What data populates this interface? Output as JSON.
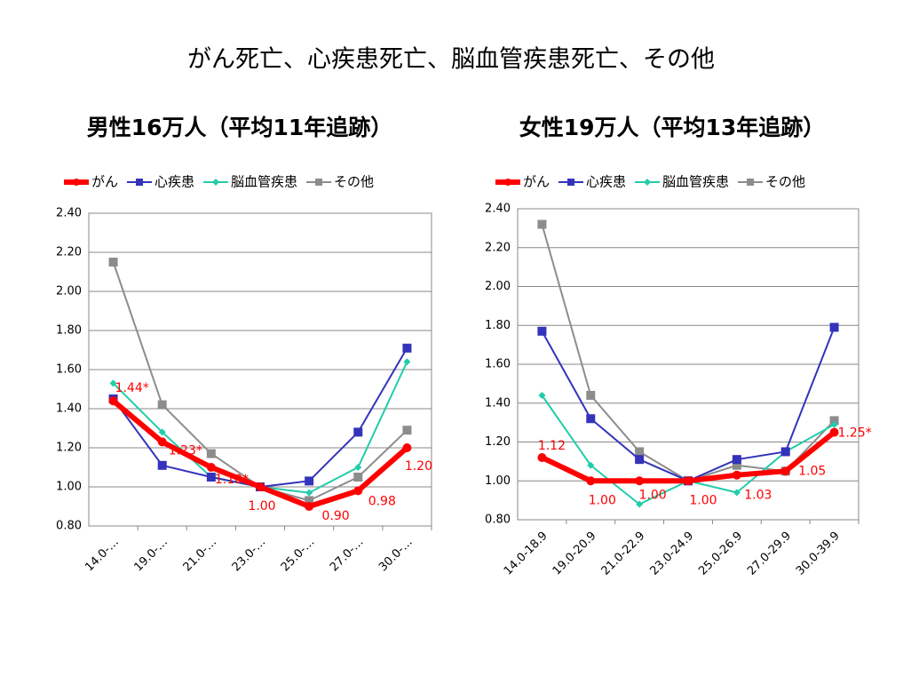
{
  "title": "がん死亡、心疾患死亡、脳血管疾患死亡、その他",
  "chart_data": [
    {
      "type": "line",
      "title": "男性16万人（平均11年追跡）",
      "categories": [
        "14.0-…",
        "19.0-…",
        "21.0-…",
        "23.0-…",
        "25.0-…",
        "27.0-…",
        "30.0-…"
      ],
      "ylim": [
        0.8,
        2.4
      ],
      "yticks": [
        {
          "value": 0.8,
          "label": "0.80"
        },
        {
          "value": 1.0,
          "label": "1.00"
        },
        {
          "value": 1.2,
          "label": "1.20"
        },
        {
          "value": 1.4,
          "label": "1.40"
        },
        {
          "value": 1.6,
          "label": "1.60"
        },
        {
          "value": 1.8,
          "label": "1.80"
        },
        {
          "value": 2.0,
          "label": "2.00"
        },
        {
          "value": 2.2,
          "label": "2.20"
        },
        {
          "value": 2.4,
          "label": "2.40"
        }
      ],
      "grid": true,
      "legend": "top",
      "series": [
        {
          "name": "がん",
          "color": "#ff0000",
          "marker": "circle",
          "line_width": 6,
          "values": [
            1.44,
            1.23,
            1.1,
            1.0,
            0.9,
            0.98,
            1.2
          ],
          "value_labels": [
            "1.44*",
            "1.23*",
            "1.10*",
            "1.00",
            "0.90",
            "0.98",
            "1.20"
          ]
        },
        {
          "name": "心疾患",
          "color": "#3333bb",
          "marker": "square",
          "line_width": 2,
          "values": [
            1.45,
            1.11,
            1.05,
            1.0,
            1.03,
            1.28,
            1.71
          ]
        },
        {
          "name": "脳血管疾患",
          "color": "#22ccaa",
          "marker": "diamond",
          "line_width": 2,
          "values": [
            1.53,
            1.28,
            1.05,
            1.0,
            0.97,
            1.1,
            1.64
          ]
        },
        {
          "name": "その他",
          "color": "#8c8c8c",
          "marker": "square",
          "line_width": 2,
          "values": [
            2.15,
            1.42,
            1.17,
            1.0,
            0.93,
            1.05,
            1.29
          ]
        }
      ]
    },
    {
      "type": "line",
      "title": "女性19万人（平均13年追跡）",
      "categories": [
        "14.0-18.9",
        "19.0-20.9",
        "21.0-22.9",
        "23.0-24.9",
        "25.0-26.9",
        "27.0-29.9",
        "30.0-39.9"
      ],
      "ylim": [
        0.8,
        2.4
      ],
      "yticks": [
        {
          "value": 0.8,
          "label": "0.80"
        },
        {
          "value": 1.0,
          "label": "1.00"
        },
        {
          "value": 1.2,
          "label": "1.20"
        },
        {
          "value": 1.4,
          "label": "1.40"
        },
        {
          "value": 1.6,
          "label": "1.60"
        },
        {
          "value": 1.8,
          "label": "1.80"
        },
        {
          "value": 2.0,
          "label": "2.00"
        },
        {
          "value": 2.2,
          "label": "2.20"
        },
        {
          "value": 2.4,
          "label": "2.40"
        }
      ],
      "grid": true,
      "legend": "top",
      "series": [
        {
          "name": "がん",
          "color": "#ff0000",
          "marker": "circle",
          "line_width": 6,
          "values": [
            1.12,
            1.0,
            1.0,
            1.0,
            1.03,
            1.05,
            1.25
          ],
          "value_labels": [
            "1.12",
            "1.00",
            "1.00",
            "1.00",
            "1.03",
            "1.05",
            "1.25*"
          ]
        },
        {
          "name": "心疾患",
          "color": "#3333bb",
          "marker": "square",
          "line_width": 2,
          "values": [
            1.77,
            1.32,
            1.11,
            1.0,
            1.11,
            1.15,
            1.79
          ]
        },
        {
          "name": "脳血管疾患",
          "color": "#22ccaa",
          "marker": "diamond",
          "line_width": 2,
          "values": [
            1.44,
            1.08,
            0.88,
            1.0,
            0.94,
            1.15,
            1.29
          ]
        },
        {
          "name": "その他",
          "color": "#8c8c8c",
          "marker": "square",
          "line_width": 2,
          "values": [
            2.32,
            1.44,
            1.15,
            1.0,
            1.08,
            1.05,
            1.31
          ]
        }
      ]
    }
  ]
}
